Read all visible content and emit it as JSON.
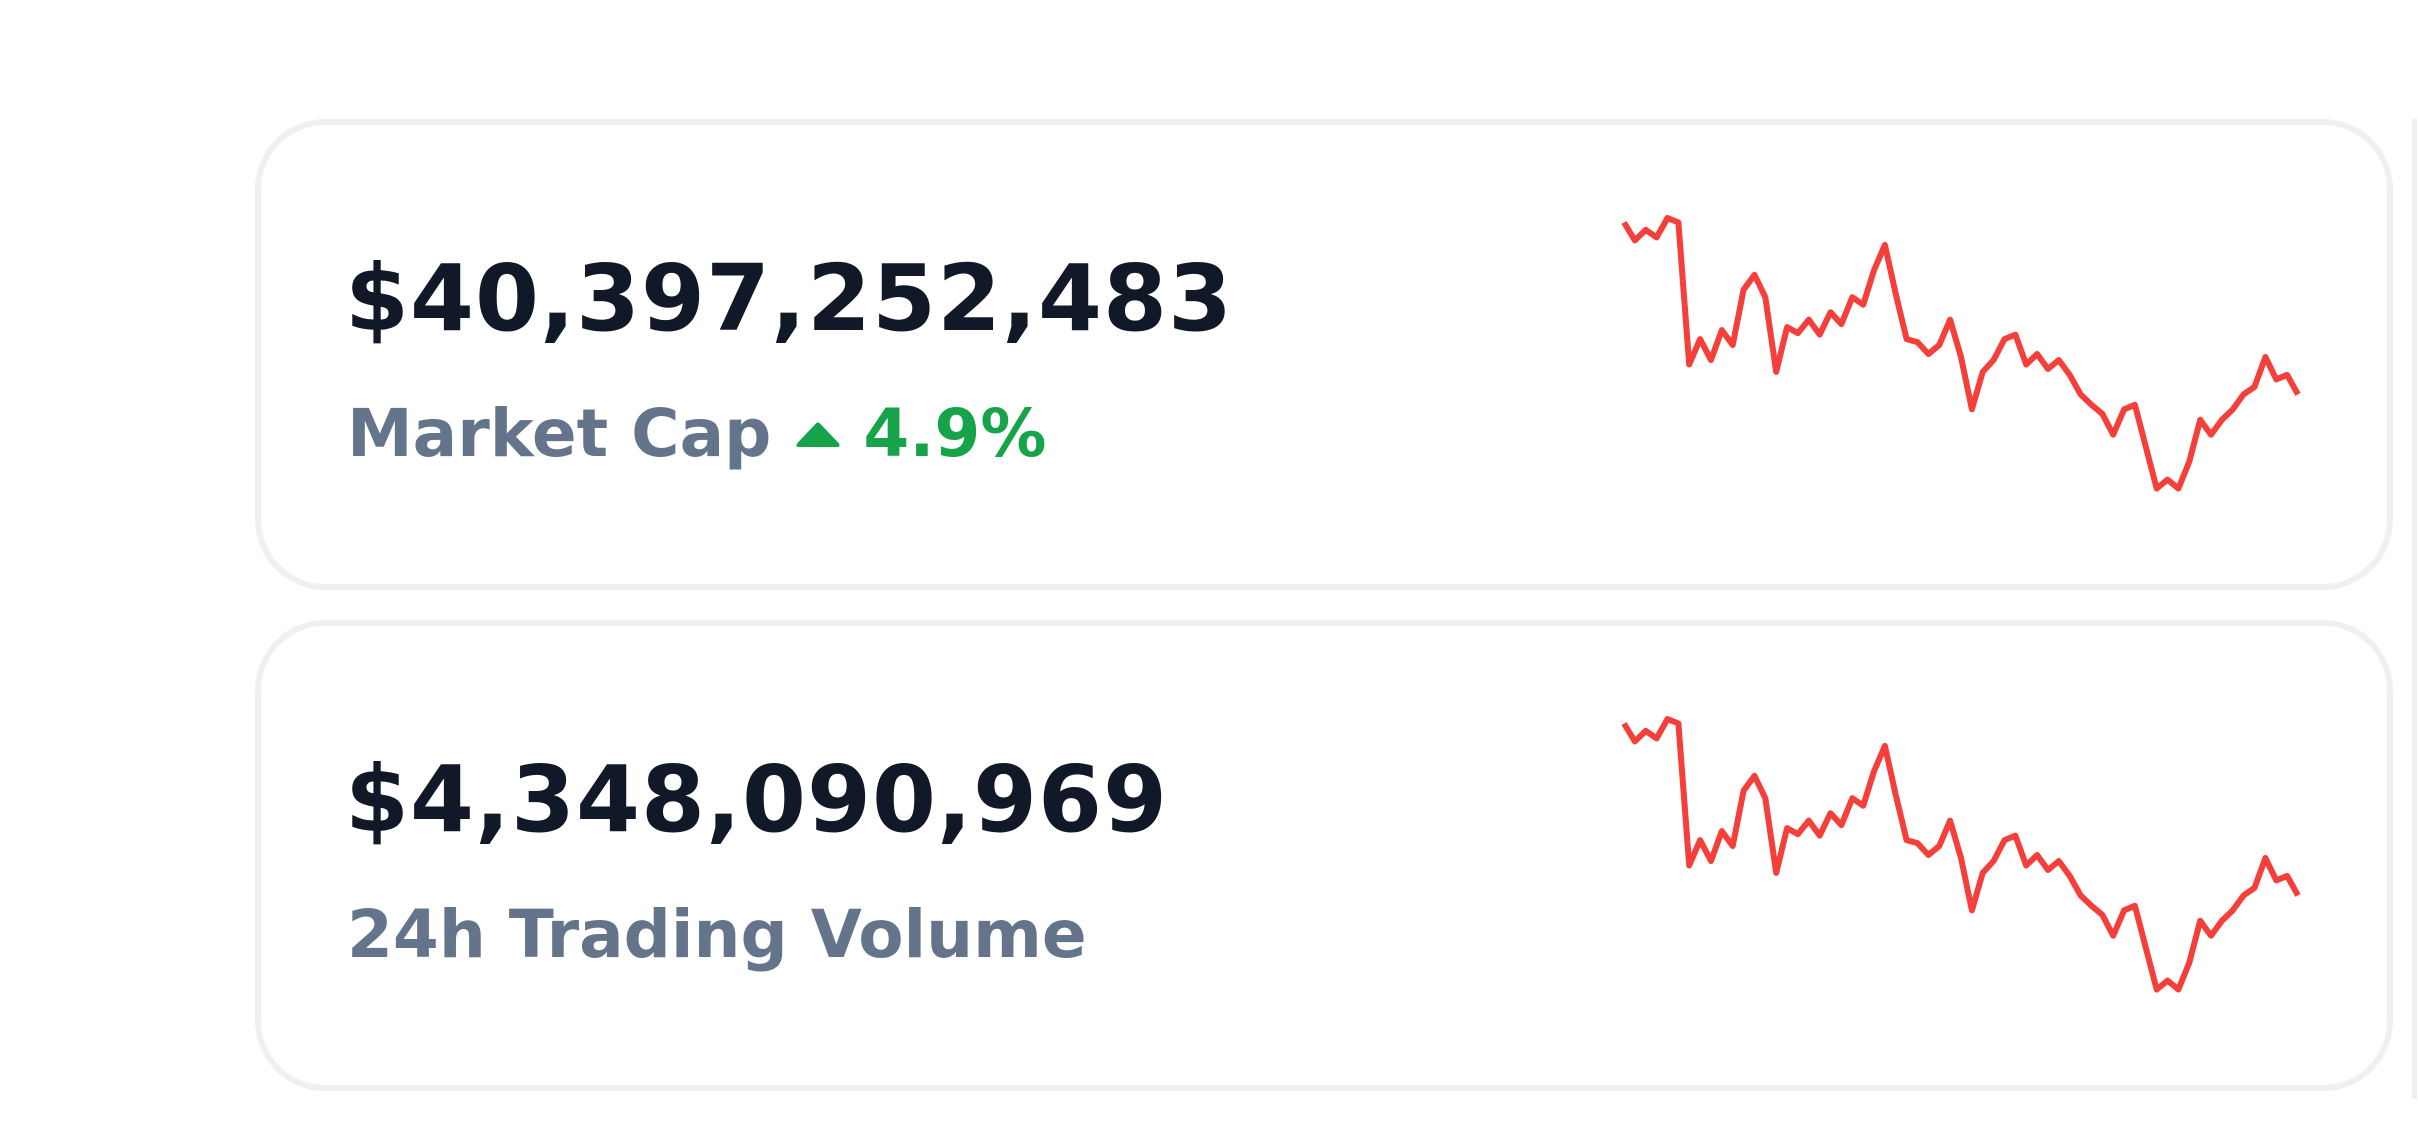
{
  "cards": [
    {
      "value": "$40,397,252,483",
      "label": "Market Cap",
      "change": "4.9%",
      "sparkline": {
        "type": "line",
        "color": "#f43f3a",
        "ylim": [
          0,
          190
        ],
        "values": [
          185,
          173,
          180,
          175,
          188,
          185,
          90,
          107,
          93,
          113,
          103,
          140,
          150,
          135,
          85,
          115,
          111,
          120,
          110,
          125,
          117,
          135,
          130,
          153,
          170,
          137,
          107,
          105,
          97,
          103,
          120,
          95,
          60,
          85,
          93,
          107,
          110,
          90,
          97,
          87,
          93,
          83,
          70,
          63,
          57,
          43,
          60,
          63,
          35,
          7,
          13,
          7,
          25,
          53,
          43,
          53,
          60,
          70,
          75,
          95,
          80,
          83,
          70
        ]
      }
    },
    {
      "value": "$4,348,090,969",
      "label": "24h Trading Volume",
      "sparkline": {
        "type": "line",
        "color": "#f43f3a",
        "ylim": [
          0,
          190
        ],
        "values": [
          185,
          173,
          180,
          175,
          188,
          185,
          90,
          107,
          93,
          113,
          103,
          140,
          150,
          135,
          85,
          115,
          111,
          120,
          110,
          125,
          117,
          135,
          130,
          153,
          170,
          137,
          107,
          105,
          97,
          103,
          120,
          95,
          60,
          85,
          93,
          107,
          110,
          90,
          97,
          87,
          93,
          83,
          70,
          63,
          57,
          43,
          60,
          63,
          35,
          7,
          13,
          7,
          25,
          53,
          43,
          53,
          60,
          70,
          75,
          95,
          80,
          83,
          70
        ]
      }
    }
  ]
}
